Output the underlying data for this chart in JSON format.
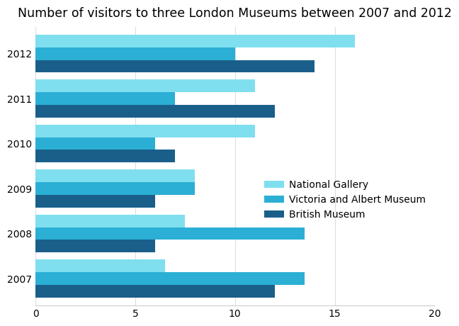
{
  "title": "Number of visitors to three London Museums between 2007 and 2012",
  "years": [
    "2007",
    "2008",
    "2009",
    "2010",
    "2011",
    "2012"
  ],
  "museums": [
    "National Gallery",
    "Victoria and Albert Museum",
    "British Museum"
  ],
  "values": {
    "National Gallery": [
      6.5,
      7.5,
      8.0,
      11.0,
      11.0,
      16.0
    ],
    "Victoria and Albert Museum": [
      13.5,
      13.5,
      8.0,
      6.0,
      7.0,
      10.0
    ],
    "British Museum": [
      12.0,
      6.0,
      6.0,
      7.0,
      12.0,
      14.0
    ]
  },
  "colors": {
    "National Gallery": "#7FDFEF",
    "Victoria and Albert Museum": "#2BAFD4",
    "British Museum": "#1A5F8A"
  },
  "xlim": [
    0,
    20
  ],
  "xticks": [
    0,
    5,
    10,
    15,
    20
  ],
  "bar_height": 0.28,
  "background_color": "#FFFFFF",
  "title_fontsize": 12.5,
  "tick_fontsize": 10,
  "legend_fontsize": 10
}
